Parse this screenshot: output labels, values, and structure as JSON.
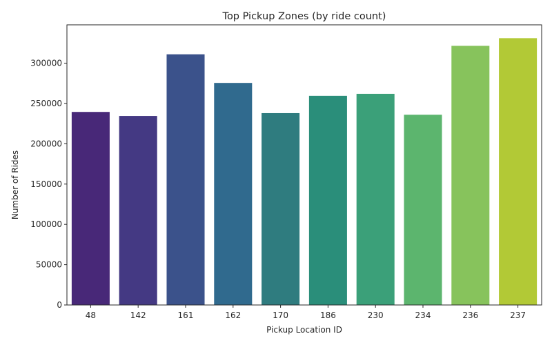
{
  "chart_data": {
    "type": "bar",
    "title": "Top Pickup Zones (by ride count)",
    "xlabel": "Pickup Location ID",
    "ylabel": "Number of Rides",
    "categories": [
      "48",
      "142",
      "161",
      "162",
      "170",
      "186",
      "230",
      "234",
      "236",
      "237"
    ],
    "values": [
      239500,
      234500,
      311000,
      275500,
      238000,
      259500,
      262000,
      236000,
      321500,
      331000
    ],
    "colors": [
      "#482878",
      "#443983",
      "#3b528b",
      "#306a8e",
      "#2f7c7f",
      "#2a8e7a",
      "#3ba079",
      "#5cb56e",
      "#87c35c",
      "#b2c936"
    ],
    "yticks": [
      0,
      50000,
      100000,
      150000,
      200000,
      250000,
      300000
    ],
    "ylim": [
      0,
      347550
    ],
    "grid": false,
    "legend": "none"
  }
}
